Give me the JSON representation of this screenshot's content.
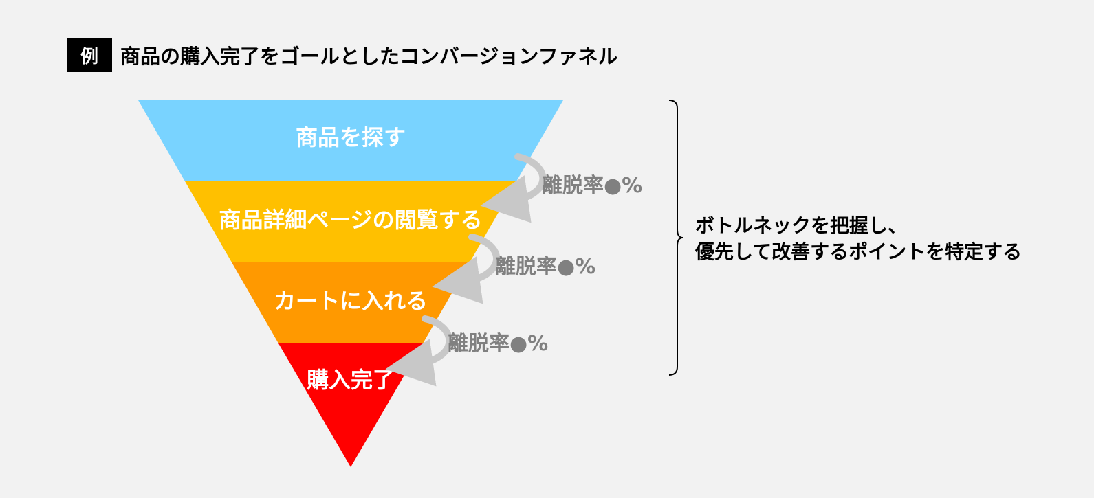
{
  "header": {
    "badge": "例",
    "title": "商品の購入完了をゴールとしたコンバージョンファネル"
  },
  "stages": [
    {
      "label": "商品を探す",
      "color": "#79d3ff"
    },
    {
      "label": "商品詳細ページの閲覧する",
      "color": "#ffc000"
    },
    {
      "label": "カートに入れる",
      "color": "#ff9900"
    },
    {
      "label": "購入完了",
      "color": "#ff0000"
    }
  ],
  "dropouts": [
    {
      "label": "離脱率●%"
    },
    {
      "label": "離脱率●%"
    },
    {
      "label": "離脱率●%"
    }
  ],
  "arrow_color": "#c8c8c8",
  "summary": {
    "line1": "ボトルネックを把握し、",
    "line2": "優先して改善するポイントを特定する"
  }
}
